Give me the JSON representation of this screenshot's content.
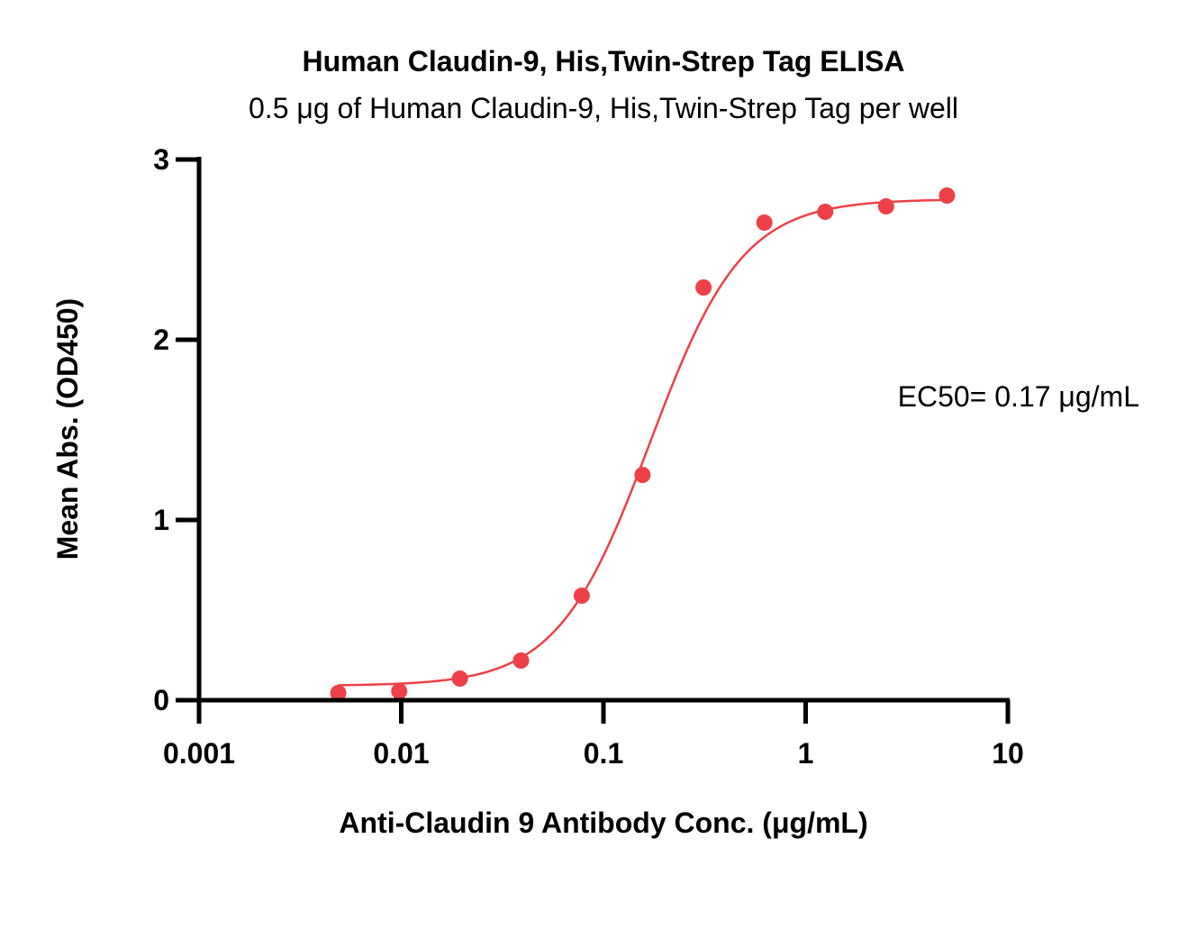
{
  "chart_data": {
    "type": "scatter",
    "title": "Human Claudin-9, His,Twin-Strep Tag ELISA",
    "subtitle": "0.5 μg of Human Claudin-9, His,Twin-Strep Tag per well",
    "xlabel": "Anti-Claudin 9 Antibody Conc. (μg/mL)",
    "ylabel": "Mean Abs. (OD450)",
    "x_scale": "log",
    "xlim": [
      0.001,
      10
    ],
    "ylim": [
      0,
      3
    ],
    "x_ticks": [
      0.001,
      0.01,
      0.1,
      1,
      10
    ],
    "x_tick_labels": [
      "0.001",
      "0.01",
      "0.1",
      "1",
      "10"
    ],
    "y_ticks": [
      0,
      1,
      2,
      3
    ],
    "y_tick_labels": [
      "0",
      "1",
      "2",
      "3"
    ],
    "grid": false,
    "color": "#ef4047",
    "series": [
      {
        "x": [
          0.00488,
          0.00977,
          0.0195,
          0.0391,
          0.0781,
          0.156,
          0.3125,
          0.625,
          1.25,
          2.5,
          5
        ],
        "y": [
          0.04,
          0.05,
          0.12,
          0.22,
          0.58,
          1.25,
          2.29,
          2.65,
          2.71,
          2.74,
          2.8
        ]
      }
    ],
    "fit_curve": {
      "type": "4PL",
      "bottom": 0.08,
      "top": 2.78,
      "ec50": 0.17,
      "hill": 1.9
    },
    "annotations": [
      "EC50= 0.17 μg/mL"
    ]
  }
}
